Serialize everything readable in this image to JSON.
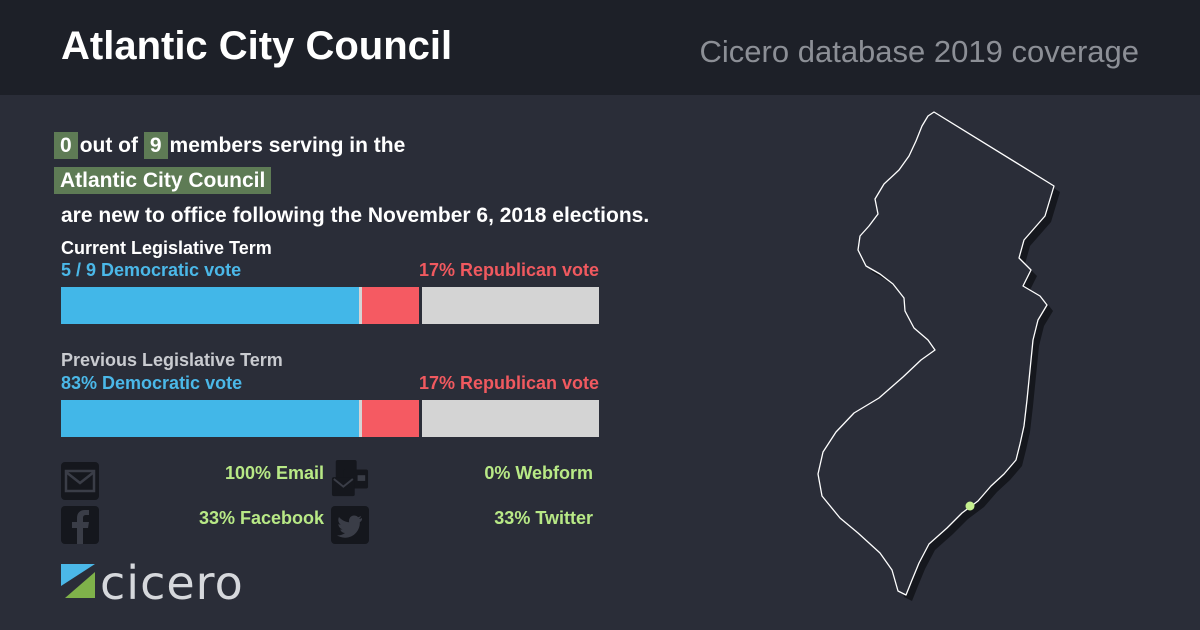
{
  "header": {
    "title": "Atlantic City Council",
    "subtitle": "Cicero database 2019 coverage"
  },
  "headline": {
    "new_count": "0",
    "text_out_of": "out of",
    "total_count": "9",
    "text_members": "members serving in the",
    "body_name": "Atlantic City Council",
    "text_tail": "are new to office following the November 6, 2018 elections."
  },
  "current_term": {
    "title": "Current Legislative Term",
    "dem_label": "5 / 9 Democratic vote",
    "rep_label": "17% Republican vote",
    "dem_fraction": 0.556,
    "rep_fraction": 0.111
  },
  "previous_term": {
    "title": "Previous Legislative Term",
    "dem_label": "83% Democratic vote",
    "rep_label": "17% Republican vote",
    "dem_fraction": 0.556,
    "rep_fraction": 0.111
  },
  "contact": {
    "email": "100% Email",
    "webform": "0% Webform",
    "facebook": "33% Facebook",
    "twitter": "33% Twitter"
  },
  "logo": {
    "text": "cicero",
    "colors": {
      "blue": "#4bb8e8",
      "green": "#7fb24a"
    }
  },
  "map": {
    "region": "New Jersey",
    "marker_color": "#c5f08f"
  },
  "colors": {
    "background": "#2a2d38",
    "header": "#1d2028",
    "highlight": "#5e7b55",
    "democratic": "#42b7e8",
    "republican": "#f55a62",
    "remainder": "#d4d4d4",
    "contact": "#b8e986"
  }
}
